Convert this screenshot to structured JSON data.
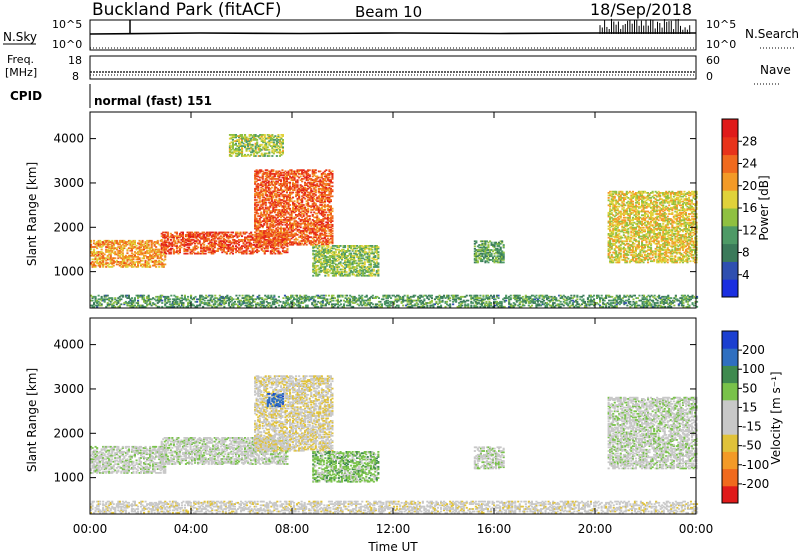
{
  "header": {
    "title": "Buckland Park (fitACF)",
    "beam": "Beam 10",
    "date": "18/Sep/2018"
  },
  "top_panels": {
    "nsky_label": "N.Sky",
    "nsearch_label": "N.Search",
    "nsky_ticks": [
      "10^5",
      "10^0"
    ],
    "nsearch_ticks": [
      "10^5",
      "10^0"
    ],
    "freq_label_1": "Freq.",
    "freq_label_2": "[MHz]",
    "freq_ticks": [
      "18",
      "8"
    ],
    "nave_label": "Nave",
    "nave_ticks": [
      "60",
      "0"
    ],
    "cpid_label": "CPID",
    "cpid_text": "normal (fast) 151"
  },
  "colors": {
    "power": [
      "#1b2fe0",
      "#2f4fb0",
      "#3b7a5a",
      "#4e9a66",
      "#8fc041",
      "#e0d23a",
      "#f39a27",
      "#f06a1e",
      "#e8331a",
      "#e01b1b"
    ],
    "velocity": [
      "#e01b1b",
      "#f06a1e",
      "#f39a27",
      "#e0c23a",
      "#c8c8c8",
      "#c8c8c8",
      "#79c24a",
      "#3f8a4f",
      "#2f6fc0",
      "#1b3fd0"
    ]
  },
  "chart_data": [
    {
      "type": "heatmap",
      "name": "power",
      "ylabel": "Slant Range [km]",
      "yticks": [
        1000,
        2000,
        3000,
        4000
      ],
      "ylim": [
        180,
        4600
      ],
      "xlim": [
        0,
        24
      ],
      "colorbar_label": "Power [dB]",
      "colorbar_ticks": [
        "4",
        "8",
        "12",
        "16",
        "20",
        "24",
        "28"
      ],
      "colorbar_range": [
        0,
        32
      ],
      "features": [
        {
          "t0": 0.0,
          "t1": 24.0,
          "r0": 200,
          "r1": 480,
          "level": 10,
          "desc": "near-range clutter"
        },
        {
          "t0": 0.0,
          "t1": 3.0,
          "r0": 1100,
          "r1": 1700,
          "level": 22
        },
        {
          "t0": 2.8,
          "t1": 7.8,
          "r0": 1400,
          "r1": 1900,
          "level": 27
        },
        {
          "t0": 6.5,
          "t1": 9.6,
          "r0": 1600,
          "r1": 3300,
          "level": 26
        },
        {
          "t0": 8.8,
          "t1": 11.4,
          "r0": 900,
          "r1": 1600,
          "level": 14
        },
        {
          "t0": 15.2,
          "t1": 16.4,
          "r0": 1200,
          "r1": 1700,
          "level": 11
        },
        {
          "t0": 20.5,
          "t1": 24.0,
          "r0": 1200,
          "r1": 2800,
          "level": 18
        },
        {
          "t0": 5.5,
          "t1": 7.6,
          "r0": 3600,
          "r1": 4100,
          "level": 15
        }
      ]
    },
    {
      "type": "heatmap",
      "name": "velocity",
      "ylabel": "Slant Range [km]",
      "yticks": [
        1000,
        2000,
        3000,
        4000
      ],
      "ylim": [
        180,
        4600
      ],
      "xlim": [
        0,
        24
      ],
      "xlabel": "Time UT",
      "xticks": [
        "00:00",
        "04:00",
        "08:00",
        "12:00",
        "16:00",
        "20:00",
        "00:00"
      ],
      "colorbar_label": "Velocity [m s⁻¹]",
      "colorbar_ticks": [
        "-200",
        "-100",
        "-50",
        "-15",
        "15",
        "50",
        "100",
        "200"
      ],
      "features": [
        {
          "t0": 0.0,
          "t1": 24.0,
          "r0": 200,
          "r1": 480,
          "vel": -30
        },
        {
          "t0": 0.0,
          "t1": 3.0,
          "r0": 1100,
          "r1": 1700,
          "vel": 0
        },
        {
          "t0": 2.8,
          "t1": 7.8,
          "r0": 1300,
          "r1": 1900,
          "vel": 0
        },
        {
          "t0": 6.5,
          "t1": 9.6,
          "r0": 1600,
          "r1": 3300,
          "vel": -40
        },
        {
          "t0": 7.0,
          "t1": 7.6,
          "r0": 2600,
          "r1": 2900,
          "vel": 180
        },
        {
          "t0": 8.8,
          "t1": 11.4,
          "r0": 900,
          "r1": 1600,
          "vel": 30
        },
        {
          "t0": 15.2,
          "t1": 16.4,
          "r0": 1200,
          "r1": 1700,
          "vel": 0
        },
        {
          "t0": 20.5,
          "t1": 24.0,
          "r0": 1200,
          "r1": 2800,
          "vel": 0
        }
      ]
    }
  ]
}
